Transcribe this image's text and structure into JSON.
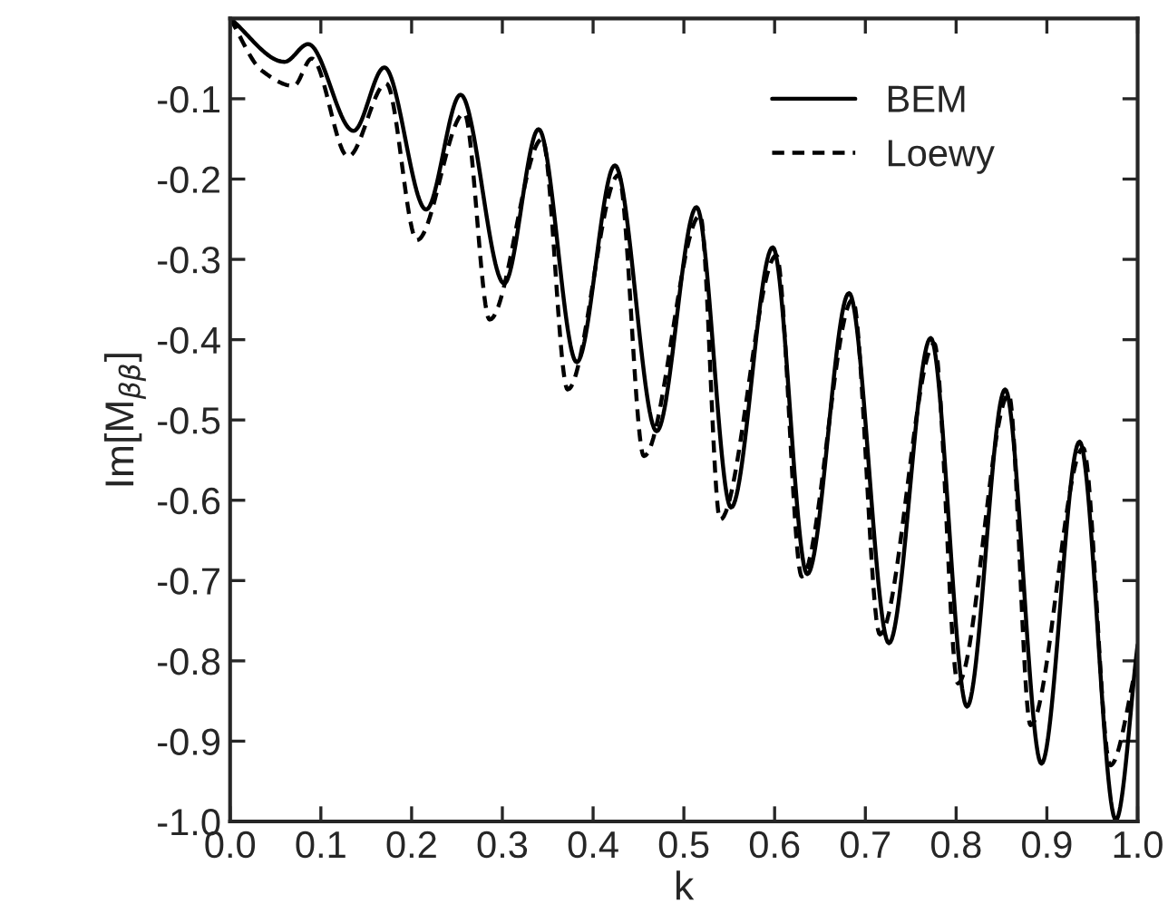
{
  "chart_data": {
    "type": "line",
    "xlabel": "k",
    "ylabel": "Im[M$_{ββ}$]",
    "xlim": [
      0.0,
      1.0
    ],
    "ylim": [
      -1.0,
      0.0
    ],
    "xticks": [
      {
        "value": 0,
        "label": "0.0"
      },
      0.1,
      0.2,
      0.3,
      0.4,
      0.5,
      0.6,
      0.7,
      0.8,
      0.9,
      {
        "value": 1,
        "label": "1.0"
      }
    ],
    "yticks": [
      -0.1,
      -0.2,
      -0.3,
      -0.4,
      -0.5,
      -0.6,
      -0.7,
      -0.8,
      -0.9,
      {
        "value": -1,
        "label": "-1.0"
      }
    ],
    "grid": false,
    "legend": "top right",
    "marker": "none",
    "series": [
      {
        "name": "BEM",
        "color": "#000000",
        "line_style": "solid",
        "x": [
          0.0,
          0.06,
          0.086,
          0.136,
          0.17,
          0.216,
          0.254,
          0.302,
          0.34,
          0.382,
          0.424,
          0.47,
          0.514,
          0.552,
          0.598,
          0.636,
          0.682,
          0.726,
          0.772,
          0.812,
          0.854,
          0.894,
          0.936,
          0.976,
          1.0
        ],
        "values": [
          0.0,
          -0.054,
          -0.032,
          -0.14,
          -0.061,
          -0.238,
          -0.095,
          -0.33,
          -0.138,
          -0.428,
          -0.183,
          -0.514,
          -0.235,
          -0.609,
          -0.285,
          -0.692,
          -0.342,
          -0.778,
          -0.398,
          -0.857,
          -0.462,
          -0.928,
          -0.527,
          -0.998,
          -0.78
        ]
      },
      {
        "name": "Loewy",
        "color": "#000000",
        "line_style": "dashed",
        "x": [
          0.0,
          0.035,
          0.07,
          0.09,
          0.13,
          0.172,
          0.206,
          0.258,
          0.286,
          0.344,
          0.372,
          0.428,
          0.456,
          0.518,
          0.54,
          0.602,
          0.63,
          0.686,
          0.716,
          0.776,
          0.802,
          0.858,
          0.882,
          0.94,
          0.97,
          1.0
        ],
        "values": [
          0.0,
          -0.065,
          -0.084,
          -0.05,
          -0.172,
          -0.081,
          -0.276,
          -0.118,
          -0.375,
          -0.15,
          -0.462,
          -0.195,
          -0.545,
          -0.245,
          -0.624,
          -0.295,
          -0.695,
          -0.35,
          -0.767,
          -0.405,
          -0.828,
          -0.468,
          -0.88,
          -0.535,
          -0.93,
          -0.8
        ]
      }
    ]
  }
}
